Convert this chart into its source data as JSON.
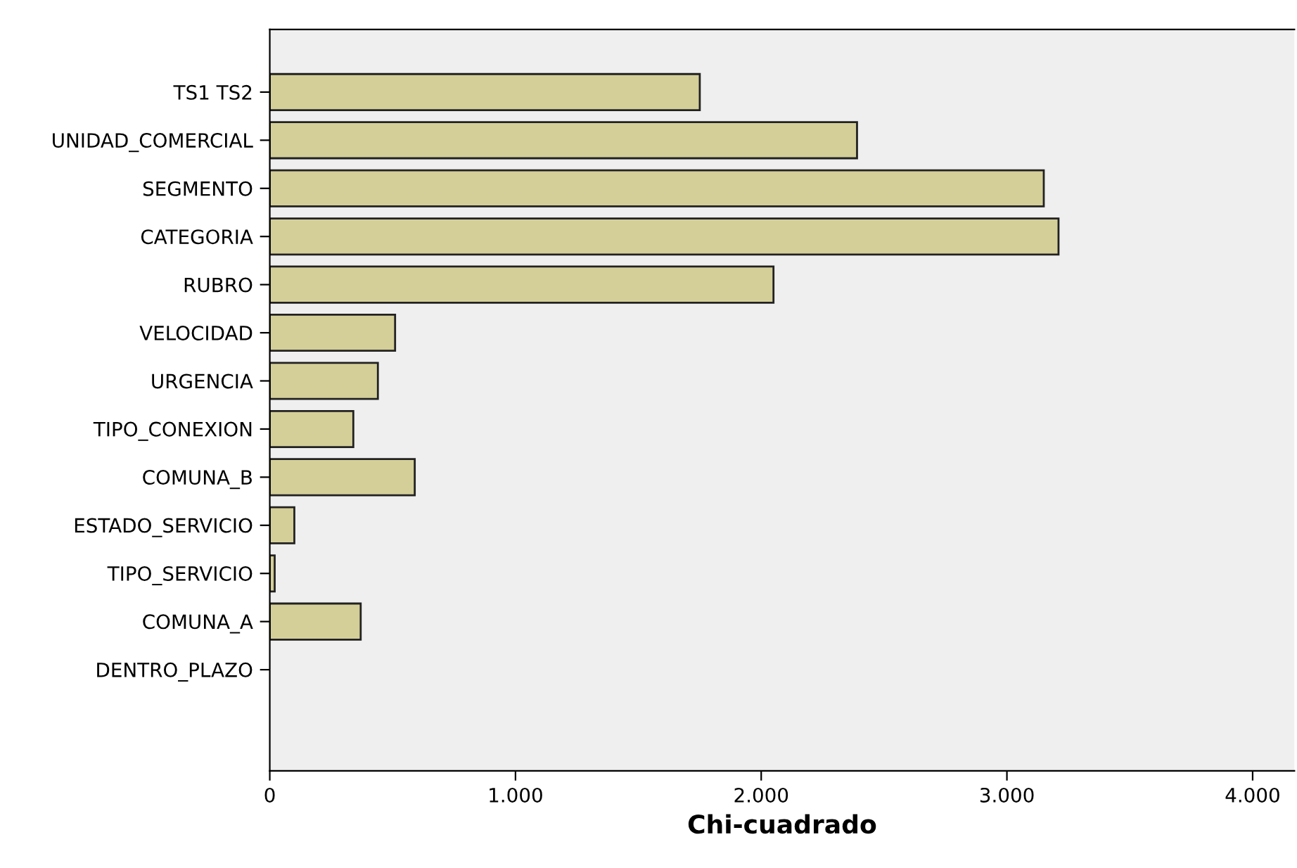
{
  "chart_data": {
    "type": "bar",
    "orientation": "horizontal",
    "xlabel": "Chi-cuadrado",
    "categories": [
      "TS1 TS2",
      "UNIDAD_COMERCIAL",
      "SEGMENTO",
      "CATEGORIA",
      "RUBRO",
      "VELOCIDAD",
      "URGENCIA",
      "TIPO_CONEXION",
      "COMUNA_B",
      "ESTADO_SERVICIO",
      "TIPO_SERVICIO",
      "COMUNA_A",
      "DENTRO_PLAZO"
    ],
    "values": [
      1750,
      2390,
      3150,
      3210,
      2050,
      510,
      440,
      340,
      590,
      100,
      20,
      370,
      0
    ],
    "color": "#d4cf98",
    "xlim": [
      0,
      4170
    ],
    "xticks": [
      0,
      {
        "value": 1000,
        "label": "1.000"
      },
      {
        "value": 2000,
        "label": "2.000"
      },
      {
        "value": 3000,
        "label": "3.000"
      },
      {
        "value": 4000,
        "label": "4.000"
      }
    ],
    "grid": false,
    "legend": false
  }
}
